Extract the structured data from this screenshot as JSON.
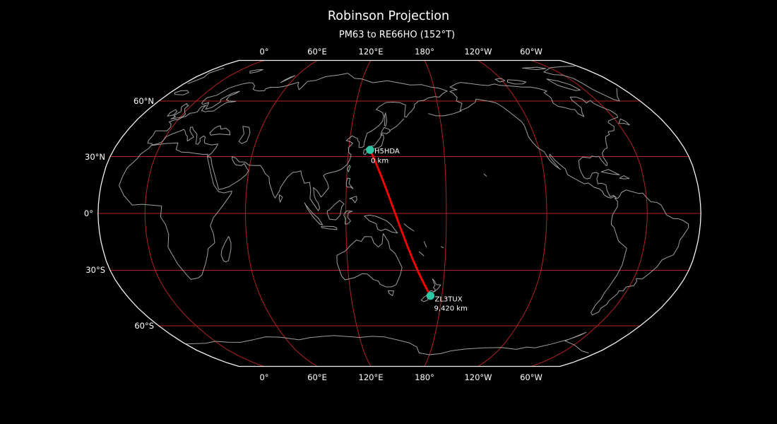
{
  "title": "Robinson Projection",
  "subtitle": "PM63 to RE66HO (152°T)",
  "axes": {
    "top_labels": [
      "0°",
      "60°E",
      "120°E",
      "180°",
      "120°W",
      "60°W"
    ],
    "bottom_labels": [
      "0°",
      "60°E",
      "120°E",
      "180°",
      "120°W",
      "60°W"
    ],
    "lat_labels": [
      "60°N",
      "30°N",
      "0°",
      "30°S",
      "60°S"
    ]
  },
  "markers": [
    {
      "callsign": "H5HDA",
      "distance": "0 km"
    },
    {
      "callsign": "ZL3TUX",
      "distance": "9,420 km"
    }
  ],
  "route": {
    "from_grid": "PM63",
    "to_grid": "RE66HO",
    "bearing": "152°T",
    "distance_label": "9,420 km"
  },
  "colors": {
    "background": "#000000",
    "graticule": "#b22222",
    "coastline": "#9e9e9e",
    "outline": "#f2f2f2",
    "route": "#ff0000",
    "marker": "#2dc7a3",
    "text": "#ffffff"
  }
}
